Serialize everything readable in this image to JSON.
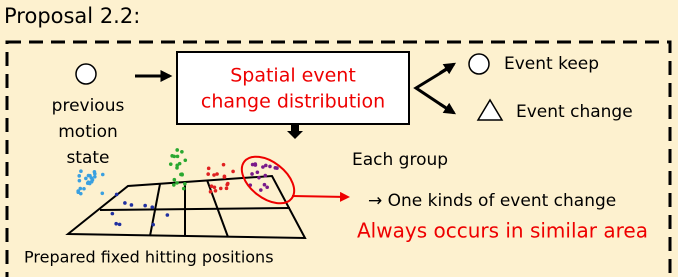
{
  "header": {
    "title": "Proposal 2.2:"
  },
  "input": {
    "lines": [
      "previous",
      "motion",
      "state"
    ]
  },
  "process": {
    "lines": [
      "Spatial event",
      "change distribution"
    ]
  },
  "legend": {
    "keep": "Event keep",
    "change": "Event change"
  },
  "group": {
    "label": "Each group",
    "result": "→ One kinds of event change",
    "highlight": "Always occurs in similar area"
  },
  "footer": {
    "caption": "Prepared fixed hitting positions"
  }
}
